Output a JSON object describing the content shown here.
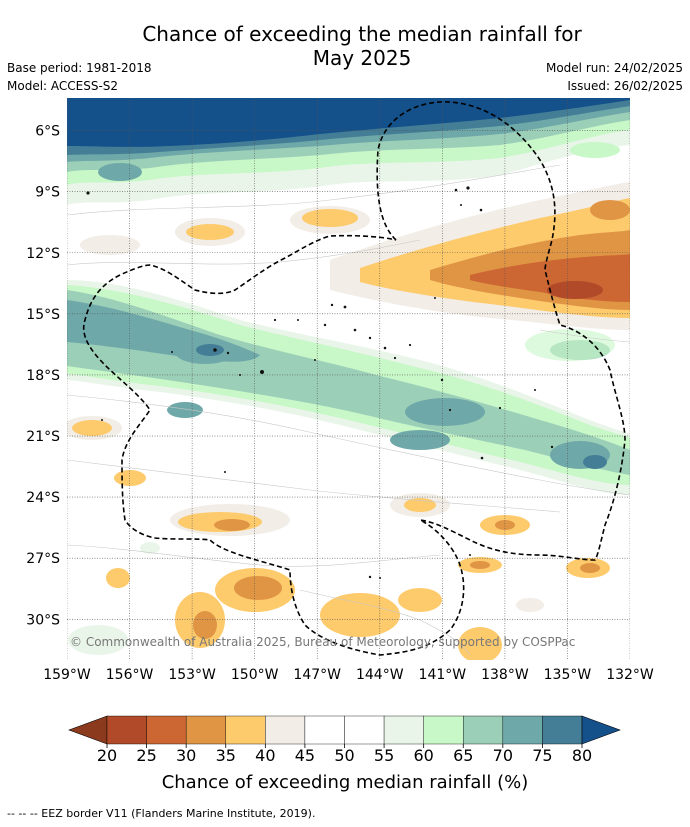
{
  "title": {
    "line1": "Chance of exceeding the median rainfall for",
    "line2": "May 2025"
  },
  "meta": {
    "base_period": "Base period: 1981-2018",
    "model": "Model: ACCESS-S2",
    "model_run": "Model run: 24/02/2025",
    "issued": "Issued: 26/02/2025"
  },
  "map": {
    "lat_ticks": [
      "6°S",
      "9°S",
      "12°S",
      "15°S",
      "18°S",
      "21°S",
      "24°S",
      "27°S",
      "30°S"
    ],
    "lon_ticks": [
      "159°W",
      "156°W",
      "153°W",
      "150°W",
      "147°W",
      "144°W",
      "141°W",
      "138°W",
      "135°W",
      "132°W"
    ],
    "lat_range": [
      -32,
      -4.4
    ],
    "lon_range": [
      -159,
      -132
    ],
    "grid": true,
    "copyright": "© Commonwealth of Australia 2025, Bureau of Meteorology, supported by COSPPac"
  },
  "colorbar": {
    "ticks": [
      "20",
      "25",
      "30",
      "35",
      "40",
      "45",
      "50",
      "55",
      "60",
      "65",
      "70",
      "75",
      "80"
    ],
    "colors": [
      "#8b3a1e",
      "#b04a28",
      "#cc6633",
      "#e09545",
      "#fdca6c",
      "#f2ede6",
      "#ffffff",
      "#ffffff",
      "#eaf5ea",
      "#c8f7c8",
      "#9ccfb8",
      "#6fa8a8",
      "#437e96",
      "#14508a"
    ],
    "label": "Chance of exceeding median rainfall (%)"
  },
  "footnote": "-- -- -- EEZ border V11 (Flanders Marine Institute, 2019)."
}
